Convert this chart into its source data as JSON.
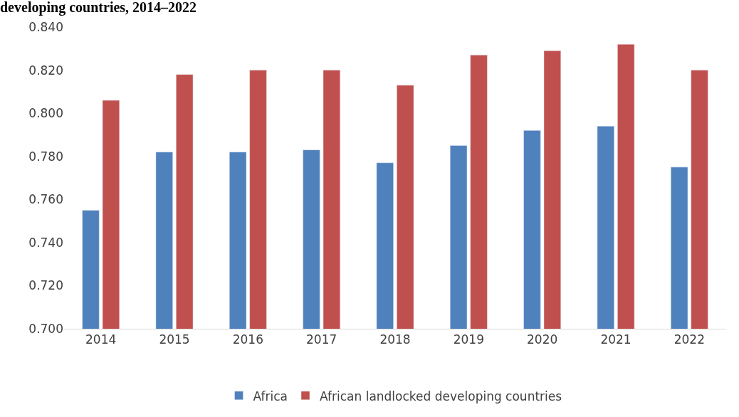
{
  "chart_data": {
    "type": "bar",
    "title": "developing countries, 2014–2022",
    "categories": [
      "2014",
      "2015",
      "2016",
      "2017",
      "2018",
      "2019",
      "2020",
      "2021",
      "2022"
    ],
    "series": [
      {
        "name": "Africa",
        "color": "#4f81bd",
        "values": [
          0.755,
          0.782,
          0.782,
          0.783,
          0.777,
          0.785,
          0.792,
          0.794,
          0.775
        ]
      },
      {
        "name": "African landlocked developing countries",
        "color": "#c0504d",
        "values": [
          0.806,
          0.818,
          0.82,
          0.82,
          0.813,
          0.827,
          0.829,
          0.832,
          0.82
        ]
      }
    ],
    "ylim": [
      0.7,
      0.84
    ],
    "yticks": [
      {
        "value": 0.7,
        "label": "0.700"
      },
      {
        "value": 0.72,
        "label": "0.720"
      },
      {
        "value": 0.74,
        "label": "0.740"
      },
      {
        "value": 0.76,
        "label": "0.760"
      },
      {
        "value": 0.78,
        "label": "0.780"
      },
      {
        "value": 0.8,
        "label": "0.800"
      },
      {
        "value": 0.82,
        "label": "0.820"
      },
      {
        "value": 0.84,
        "label": "0.840"
      }
    ],
    "legend": "bottom"
  }
}
